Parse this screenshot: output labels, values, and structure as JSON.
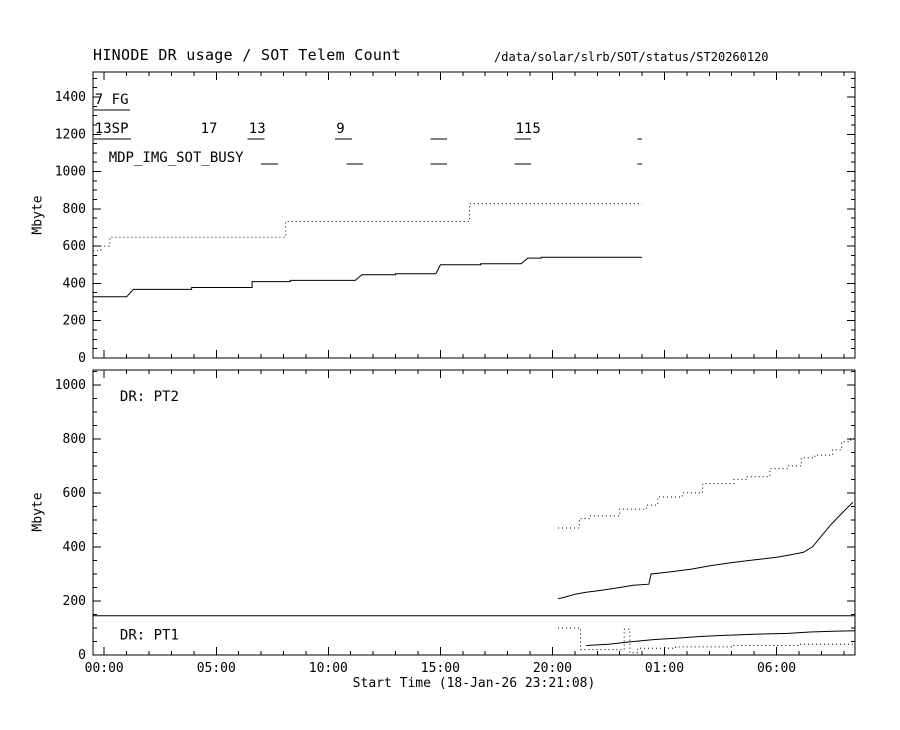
{
  "colors": {
    "foreground": "#000000",
    "background": "#ffffff"
  },
  "chart_data": {
    "type": "line",
    "title": "HINODE DR usage / SOT Telem Count",
    "path": "/data/solar/slrb/SOT/status/ST20260120",
    "x_axis": {
      "label": "Start Time (18-Jan-26 23:21:08)",
      "range": [
        -0.5,
        33.5
      ],
      "minor_step": 1,
      "ticks": [
        {
          "value": 0,
          "label": "00:00"
        },
        {
          "value": 5,
          "label": "05:00"
        },
        {
          "value": 10,
          "label": "10:00"
        },
        {
          "value": 15,
          "label": "15:00"
        },
        {
          "value": 20,
          "label": "20:00"
        },
        {
          "value": 25,
          "label": "01:00"
        },
        {
          "value": 30,
          "label": "06:00"
        }
      ]
    },
    "panels": [
      {
        "name": "sot-telem-count",
        "ylabel": "Mbyte",
        "ylim": [
          0,
          1534
        ],
        "yticks": [
          0,
          200,
          400,
          600,
          800,
          1000,
          1200,
          1400
        ],
        "ytick_minor": 50,
        "ytick_major": 200,
        "series": [
          {
            "name": "sp-telem-dotted",
            "style": "dotted",
            "points": [
              [
                -0.5,
                575
              ],
              [
                -0.15,
                575
              ],
              [
                -0.15,
                600
              ],
              [
                0.25,
                600
              ],
              [
                0.25,
                648
              ],
              [
                8.1,
                648
              ],
              [
                8.1,
                732
              ],
              [
                16.3,
                732
              ],
              [
                16.3,
                828
              ],
              [
                24.0,
                828
              ]
            ]
          },
          {
            "name": "fg-telem-solid",
            "style": "solid",
            "points": [
              [
                -0.5,
                328
              ],
              [
                1.0,
                328
              ],
              [
                1.3,
                368
              ],
              [
                3.9,
                368
              ],
              [
                3.9,
                378
              ],
              [
                6.6,
                378
              ],
              [
                6.6,
                410
              ],
              [
                8.3,
                410
              ],
              [
                8.3,
                416
              ],
              [
                11.2,
                416
              ],
              [
                11.5,
                446
              ],
              [
                13.0,
                446
              ],
              [
                13.0,
                452
              ],
              [
                14.8,
                452
              ],
              [
                15.0,
                500
              ],
              [
                16.8,
                500
              ],
              [
                16.8,
                506
              ],
              [
                18.6,
                506
              ],
              [
                18.9,
                536
              ],
              [
                19.5,
                536
              ],
              [
                19.5,
                540
              ],
              [
                24.0,
                540
              ]
            ]
          }
        ],
        "marks": [
          {
            "name": "fg-underline-mark",
            "y": 1330,
            "ranges": [
              [
                -0.45,
                1.15
              ]
            ]
          },
          {
            "name": "sp-count-marks",
            "y": 1175,
            "ranges": [
              [
                -0.45,
                1.2
              ],
              [
                6.4,
                7.15
              ],
              [
                10.3,
                11.05
              ],
              [
                14.55,
                15.3
              ],
              [
                18.3,
                19.05
              ],
              [
                23.8,
                24.0
              ]
            ]
          },
          {
            "name": "mdp-busy-marks",
            "y": 1040,
            "ranges": [
              [
                7.0,
                7.75
              ],
              [
                10.8,
                11.55
              ],
              [
                14.55,
                15.3
              ],
              [
                18.3,
                19.05
              ],
              [
                23.8,
                24.0
              ]
            ]
          }
        ],
        "annotations": [
          {
            "text": "7 FG",
            "x": -0.42,
            "y": 1362
          },
          {
            "text": "13SP",
            "x": -0.42,
            "y": 1208
          },
          {
            "text": "17",
            "x": 4.3,
            "y": 1208
          },
          {
            "text": "13",
            "x": 6.45,
            "y": 1208
          },
          {
            "text": "9",
            "x": 10.35,
            "y": 1208
          },
          {
            "text": "115",
            "x": 18.35,
            "y": 1208
          },
          {
            "text": "MDP_IMG_SOT_BUSY",
            "x": 0.2,
            "y": 1052
          }
        ]
      },
      {
        "name": "dr-usage",
        "ylabel": "Mbyte",
        "ylim": [
          0,
          1055
        ],
        "yticks": [
          0,
          200,
          400,
          600,
          800,
          1000
        ],
        "ytick_minor": 50,
        "ytick_major": 200,
        "series": [
          {
            "name": "pt2-dotted",
            "style": "dotted",
            "points": [
              [
                20.25,
                470
              ],
              [
                21.2,
                470
              ],
              [
                21.2,
                505
              ],
              [
                21.7,
                505
              ],
              [
                21.7,
                515
              ],
              [
                23.0,
                515
              ],
              [
                23.0,
                540
              ],
              [
                24.2,
                540
              ],
              [
                24.2,
                555
              ],
              [
                24.7,
                555
              ],
              [
                24.7,
                585
              ],
              [
                25.8,
                585
              ],
              [
                25.8,
                600
              ],
              [
                26.7,
                600
              ],
              [
                26.7,
                635
              ],
              [
                28.1,
                635
              ],
              [
                28.1,
                650
              ],
              [
                28.7,
                650
              ],
              [
                28.7,
                660
              ],
              [
                29.7,
                660
              ],
              [
                29.7,
                690
              ],
              [
                30.5,
                690
              ],
              [
                30.5,
                700
              ],
              [
                31.1,
                700
              ],
              [
                31.1,
                730
              ],
              [
                31.7,
                730
              ],
              [
                31.7,
                740
              ],
              [
                32.5,
                740
              ],
              [
                32.5,
                760
              ],
              [
                32.9,
                760
              ],
              [
                32.9,
                790
              ],
              [
                33.3,
                790
              ],
              [
                33.3,
                800
              ],
              [
                33.5,
                800
              ]
            ]
          },
          {
            "name": "pt2-solid",
            "style": "solid",
            "points": [
              [
                20.25,
                208
              ],
              [
                20.6,
                215
              ],
              [
                21.0,
                225
              ],
              [
                21.5,
                232
              ],
              [
                22.2,
                240
              ],
              [
                23.0,
                250
              ],
              [
                23.6,
                258
              ],
              [
                24.3,
                262
              ],
              [
                24.4,
                300
              ],
              [
                25.3,
                308
              ],
              [
                26.2,
                318
              ],
              [
                27.0,
                330
              ],
              [
                28.0,
                342
              ],
              [
                29.0,
                352
              ],
              [
                30.0,
                362
              ],
              [
                30.7,
                372
              ],
              [
                31.2,
                380
              ],
              [
                31.6,
                400
              ],
              [
                32.0,
                440
              ],
              [
                32.4,
                480
              ],
              [
                32.8,
                515
              ],
              [
                33.1,
                540
              ],
              [
                33.4,
                565
              ]
            ]
          },
          {
            "name": "pt1-dotted",
            "style": "dotted",
            "points": [
              [
                20.25,
                100
              ],
              [
                21.25,
                100
              ],
              [
                21.25,
                20
              ],
              [
                23.2,
                20
              ],
              [
                23.2,
                95
              ],
              [
                23.45,
                95
              ],
              [
                23.45,
                8
              ],
              [
                23.8,
                8
              ],
              [
                23.8,
                25
              ],
              [
                25.5,
                25
              ],
              [
                25.5,
                30
              ],
              [
                28.0,
                30
              ],
              [
                28.0,
                35
              ],
              [
                31.0,
                35
              ],
              [
                31.0,
                40
              ],
              [
                33.5,
                40
              ]
            ]
          },
          {
            "name": "pt1-solid",
            "style": "solid",
            "points": [
              [
                21.5,
                35
              ],
              [
                22.5,
                40
              ],
              [
                23.4,
                48
              ],
              [
                24.5,
                57
              ],
              [
                25.5,
                62
              ],
              [
                26.5,
                68
              ],
              [
                27.5,
                72
              ],
              [
                29.0,
                77
              ],
              [
                30.5,
                80
              ],
              [
                31.5,
                85
              ],
              [
                32.5,
                88
              ],
              [
                33.5,
                90
              ]
            ]
          },
          {
            "name": "pt1-quota-line",
            "style": "solid",
            "points": [
              [
                -0.5,
                145
              ],
              [
                33.5,
                145
              ]
            ]
          }
        ],
        "marks": [],
        "annotations": [
          {
            "text": "DR: PT2",
            "x": 0.7,
            "y": 940
          },
          {
            "text": "DR: PT1",
            "x": 0.7,
            "y": 58
          }
        ]
      }
    ]
  }
}
